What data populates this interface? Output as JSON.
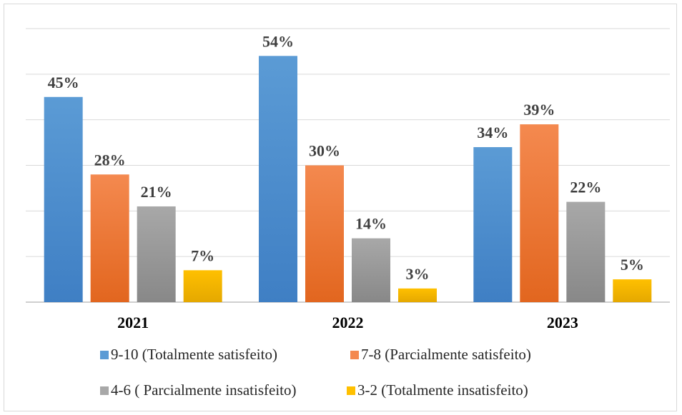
{
  "chart_data": {
    "type": "bar",
    "categories": [
      "2021",
      "2022",
      "2023"
    ],
    "series": [
      {
        "name": "9-10 (Totalmente satisfeito)",
        "values": [
          45,
          54,
          34
        ],
        "labels": [
          "45%",
          "54%",
          "34%"
        ],
        "color": "#5b9bd5",
        "color_dark": "#3f7fc4"
      },
      {
        "name": "7-8 (Parcialmente satisfeito)",
        "values": [
          28,
          30,
          39
        ],
        "labels": [
          "28%",
          "30%",
          "39%"
        ],
        "color": "#f4894f",
        "color_dark": "#e2661f"
      },
      {
        "name": "4-6 ( Parcialmente insatisfeito)",
        "values": [
          21,
          14,
          22
        ],
        "labels": [
          "21%",
          "14%",
          "22%"
        ],
        "color": "#a8a8a8",
        "color_dark": "#888888"
      },
      {
        "name": "3-2 (Totalmente insatisfeito)",
        "values": [
          7,
          3,
          5
        ],
        "labels": [
          "7%",
          "3%",
          "5%"
        ],
        "color": "#ffc000",
        "color_dark": "#e5a800"
      }
    ],
    "ylim": [
      0,
      60
    ],
    "grid": true,
    "legend_position": "bottom"
  }
}
